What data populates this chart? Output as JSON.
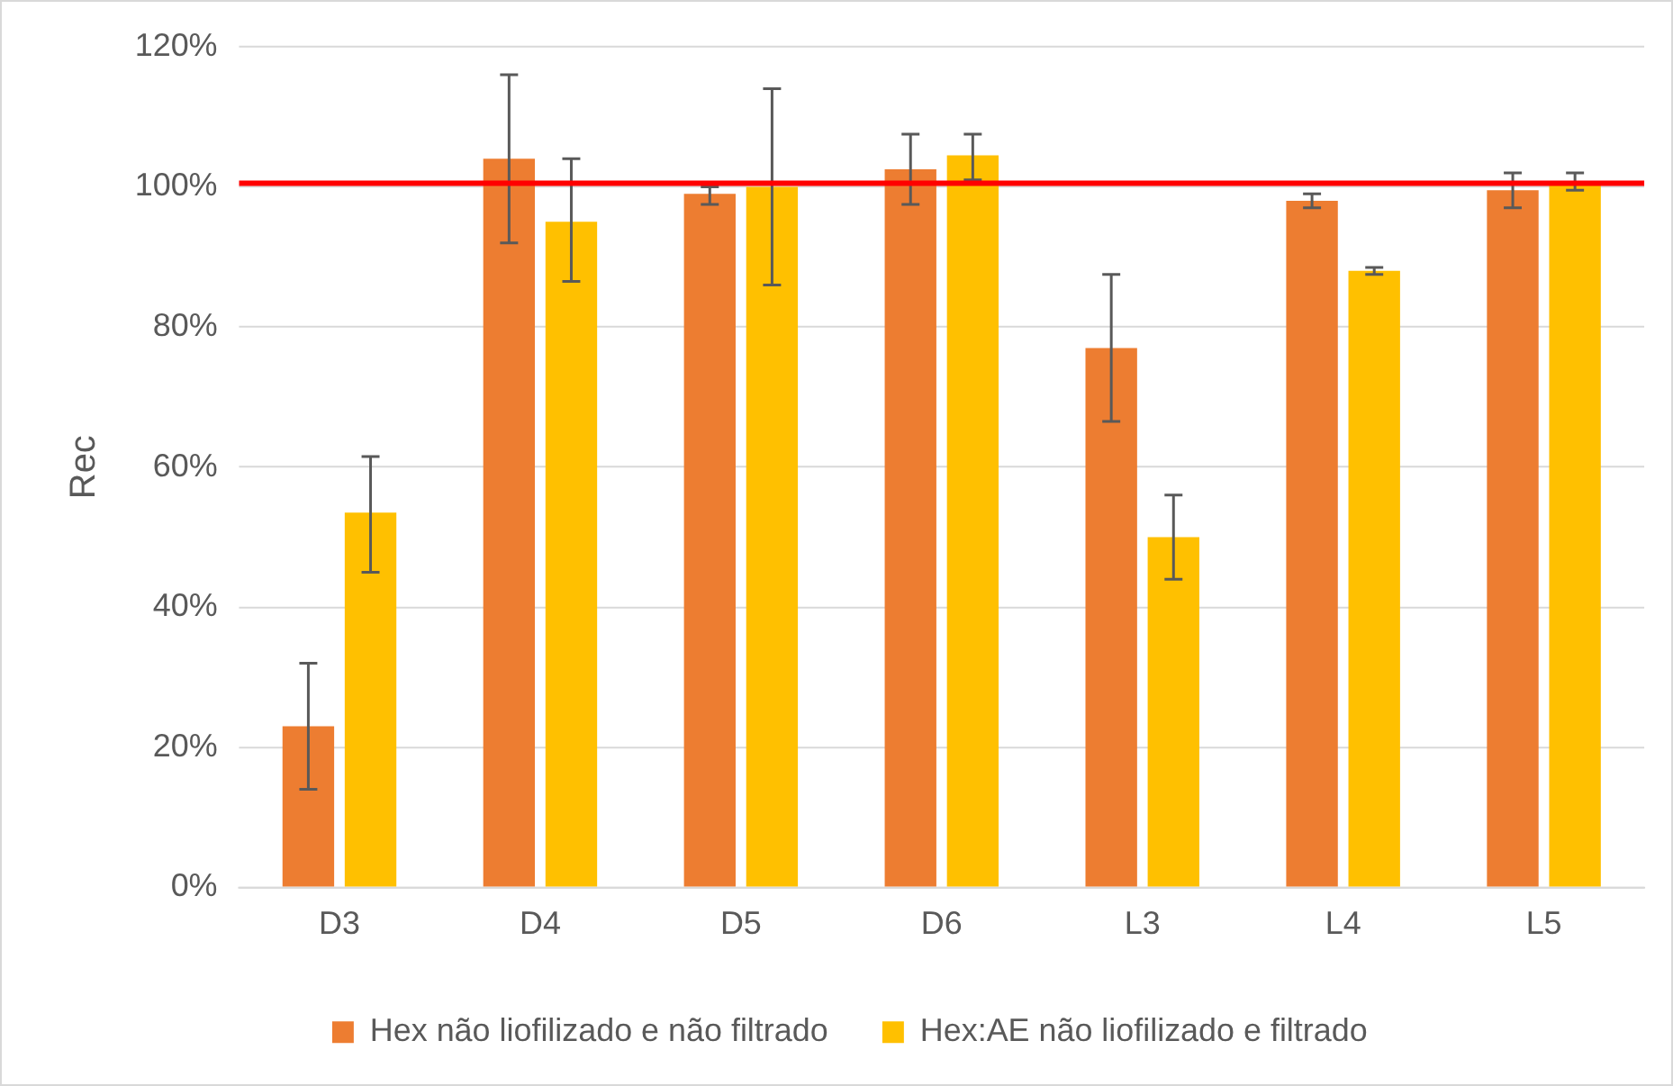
{
  "chart_data": {
    "type": "bar",
    "ylabel": "Rec",
    "categories": [
      "D3",
      "D4",
      "D5",
      "D6",
      "L3",
      "L4",
      "L5"
    ],
    "series": [
      {
        "name": "Hex não liofilizado e não filtrado",
        "color": "#ed7d31",
        "values": [
          23,
          104,
          99,
          102.5,
          77,
          98,
          99.5
        ],
        "errors": [
          [
            14,
            32
          ],
          [
            92,
            116
          ],
          [
            97.5,
            100
          ],
          [
            97.5,
            107.5
          ],
          [
            66.5,
            87.5
          ],
          [
            97,
            99
          ],
          [
            97,
            102
          ]
        ]
      },
      {
        "name": "Hex:AE não liofilizado e filtrado",
        "color": "#ffc000",
        "values": [
          53.5,
          95,
          100,
          104.5,
          50,
          88,
          100.5
        ],
        "errors": [
          [
            45,
            61.5
          ],
          [
            86.5,
            104
          ],
          [
            86,
            114
          ],
          [
            101,
            107.5
          ],
          [
            44,
            56
          ],
          [
            87.5,
            88.5
          ],
          [
            99.5,
            102
          ]
        ]
      }
    ],
    "ylim": [
      0,
      120
    ],
    "yticks": [
      {
        "value": 0,
        "label": "0%"
      },
      {
        "value": 20,
        "label": "20%"
      },
      {
        "value": 40,
        "label": "40%"
      },
      {
        "value": 60,
        "label": "60%"
      },
      {
        "value": 80,
        "label": "80%"
      },
      {
        "value": 100,
        "label": "100%"
      },
      {
        "value": 120,
        "label": "120%"
      }
    ],
    "ref_lines": [
      {
        "axis": "y",
        "value": 100.5,
        "color": "#ff0000"
      }
    ],
    "grid": "y",
    "legend": "bottom"
  }
}
